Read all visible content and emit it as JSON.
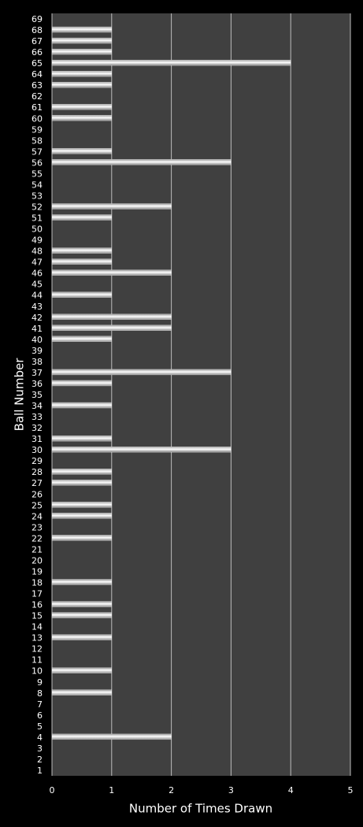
{
  "chart_data": {
    "type": "bar",
    "orientation": "horizontal",
    "x_label": "Number of Times Drawn",
    "y_label": "Ball Number",
    "categories": [
      "1",
      "2",
      "3",
      "4",
      "5",
      "6",
      "7",
      "8",
      "9",
      "10",
      "11",
      "12",
      "13",
      "14",
      "15",
      "16",
      "17",
      "18",
      "19",
      "20",
      "21",
      "22",
      "23",
      "24",
      "25",
      "26",
      "27",
      "28",
      "29",
      "30",
      "31",
      "32",
      "33",
      "34",
      "35",
      "36",
      "37",
      "38",
      "39",
      "40",
      "41",
      "42",
      "43",
      "44",
      "45",
      "46",
      "47",
      "48",
      "49",
      "50",
      "51",
      "52",
      "53",
      "54",
      "55",
      "56",
      "57",
      "58",
      "59",
      "60",
      "61",
      "62",
      "63",
      "64",
      "65",
      "66",
      "67",
      "68",
      "69"
    ],
    "values": [
      0,
      0,
      0,
      2,
      0,
      0,
      0,
      1,
      0,
      1,
      0,
      0,
      1,
      0,
      1,
      1,
      0,
      1,
      0,
      0,
      0,
      1,
      0,
      1,
      1,
      0,
      1,
      1,
      0,
      3,
      1,
      0,
      0,
      1,
      0,
      1,
      3,
      0,
      0,
      1,
      2,
      2,
      0,
      1,
      0,
      2,
      1,
      1,
      0,
      0,
      1,
      2,
      0,
      0,
      0,
      3,
      1,
      0,
      0,
      1,
      1,
      0,
      1,
      1,
      4,
      1,
      1,
      1,
      0
    ],
    "color": "#ffffff",
    "xlim": [
      0,
      5
    ],
    "xticks": [
      0,
      1,
      2,
      3,
      4,
      5
    ],
    "grid": true
  }
}
